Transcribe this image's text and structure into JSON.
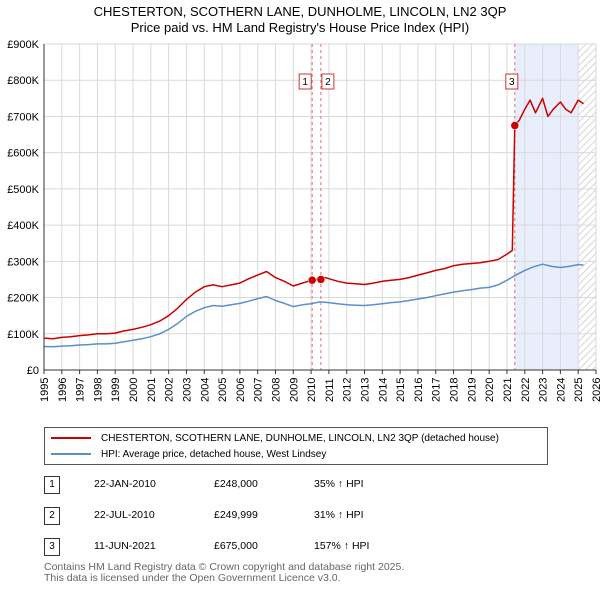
{
  "header": {
    "title": "CHESTERTON, SCOTHERN LANE, DUNHOLME, LINCOLN, LN2 3QP",
    "subtitle": "Price paid vs. HM Land Registry's House Price Index (HPI)"
  },
  "colors": {
    "price_line": "#cc0000",
    "hpi_line": "#5b8fcc",
    "shade": "#e8eefc",
    "grid": "#d9d9d9"
  },
  "chart_data": {
    "type": "line",
    "title": "CHESTERTON, SCOTHERN LANE, DUNHOLME, LINCOLN, LN2 3QP",
    "subtitle": "Price paid vs. HM Land Registry's House Price Index (HPI)",
    "xlim": [
      1995,
      2026
    ],
    "ylim": [
      0,
      900000
    ],
    "x_ticks": [
      "1995",
      "1996",
      "1997",
      "1998",
      "1999",
      "2000",
      "2001",
      "2002",
      "2003",
      "2004",
      "2005",
      "2006",
      "2007",
      "2008",
      "2009",
      "2010",
      "2011",
      "2012",
      "2013",
      "2014",
      "2015",
      "2016",
      "2017",
      "2018",
      "2019",
      "2020",
      "2021",
      "2022",
      "2023",
      "2024",
      "2025",
      "2026"
    ],
    "y_ticks": [
      {
        "value": 0,
        "label": "£0"
      },
      {
        "value": 100000,
        "label": "£100K"
      },
      {
        "value": 200000,
        "label": "£200K"
      },
      {
        "value": 300000,
        "label": "£300K"
      },
      {
        "value": 400000,
        "label": "£400K"
      },
      {
        "value": 500000,
        "label": "£500K"
      },
      {
        "value": 600000,
        "label": "£600K"
      },
      {
        "value": 700000,
        "label": "£700K"
      },
      {
        "value": 800000,
        "label": "£800K"
      },
      {
        "value": 900000,
        "label": "£900K"
      }
    ],
    "grid": true,
    "series": [
      {
        "name": "CHESTERTON, SCOTHERN LANE, DUNHOLME, LINCOLN, LN2 3QP (detached house)",
        "color": "#cc0000",
        "x": [
          1995.0,
          1995.5,
          1996.0,
          1996.5,
          1997.0,
          1997.5,
          1998.0,
          1998.5,
          1999.0,
          1999.5,
          2000.0,
          2000.5,
          2001.0,
          2001.5,
          2002.0,
          2002.5,
          2003.0,
          2003.5,
          2004.0,
          2004.5,
          2005.0,
          2005.5,
          2006.0,
          2006.5,
          2007.0,
          2007.5,
          2008.0,
          2008.5,
          2009.0,
          2009.5,
          2010.05,
          2010.3,
          2010.55,
          2010.8,
          2011.0,
          2011.5,
          2012.0,
          2012.5,
          2013.0,
          2013.5,
          2014.0,
          2014.5,
          2015.0,
          2015.5,
          2016.0,
          2016.5,
          2017.0,
          2017.5,
          2018.0,
          2018.5,
          2019.0,
          2019.5,
          2020.0,
          2020.5,
          2021.0,
          2021.3,
          2021.44,
          2021.7,
          2022.0,
          2022.3,
          2022.6,
          2023.0,
          2023.3,
          2023.6,
          2024.0,
          2024.3,
          2024.6,
          2025.0,
          2025.3
        ],
        "values": [
          88000,
          86000,
          90000,
          92000,
          95000,
          97000,
          100000,
          100000,
          102000,
          108000,
          112000,
          118000,
          125000,
          135000,
          150000,
          170000,
          195000,
          215000,
          230000,
          235000,
          230000,
          235000,
          240000,
          252000,
          262000,
          272000,
          255000,
          245000,
          232000,
          240000,
          248000,
          250000,
          249999,
          255000,
          252000,
          245000,
          240000,
          238000,
          236000,
          240000,
          245000,
          248000,
          250000,
          255000,
          262000,
          268000,
          275000,
          280000,
          288000,
          292000,
          294000,
          296000,
          300000,
          305000,
          320000,
          330000,
          675000,
          690000,
          720000,
          745000,
          710000,
          750000,
          700000,
          720000,
          740000,
          720000,
          710000,
          745000,
          735000
        ]
      },
      {
        "name": "HPI: Average price, detached house, West Lindsey",
        "color": "#5b8fcc",
        "x": [
          1995.0,
          1995.5,
          1996.0,
          1996.5,
          1997.0,
          1997.5,
          1998.0,
          1998.5,
          1999.0,
          1999.5,
          2000.0,
          2000.5,
          2001.0,
          2001.5,
          2002.0,
          2002.5,
          2003.0,
          2003.5,
          2004.0,
          2004.5,
          2005.0,
          2005.5,
          2006.0,
          2006.5,
          2007.0,
          2007.5,
          2008.0,
          2008.5,
          2009.0,
          2009.5,
          2010.0,
          2010.5,
          2011.0,
          2011.5,
          2012.0,
          2012.5,
          2013.0,
          2013.5,
          2014.0,
          2014.5,
          2015.0,
          2015.5,
          2016.0,
          2016.5,
          2017.0,
          2017.5,
          2018.0,
          2018.5,
          2019.0,
          2019.5,
          2020.0,
          2020.5,
          2021.0,
          2021.5,
          2022.0,
          2022.5,
          2023.0,
          2023.5,
          2024.0,
          2024.5,
          2025.0,
          2025.3
        ],
        "values": [
          65000,
          64000,
          66000,
          67000,
          69000,
          70000,
          72000,
          72000,
          74000,
          78000,
          82000,
          86000,
          92000,
          100000,
          112000,
          128000,
          148000,
          162000,
          172000,
          178000,
          176000,
          180000,
          184000,
          190000,
          197000,
          203000,
          192000,
          184000,
          175000,
          180000,
          183000,
          188000,
          186000,
          183000,
          180000,
          179000,
          178000,
          180000,
          183000,
          186000,
          188000,
          192000,
          196000,
          200000,
          205000,
          210000,
          215000,
          219000,
          222000,
          226000,
          228000,
          235000,
          248000,
          262000,
          275000,
          285000,
          292000,
          286000,
          283000,
          286000,
          291000,
          290000
        ]
      }
    ],
    "sales": [
      {
        "label": "1",
        "x": 2010.06,
        "value": 248000,
        "date": "22-JAN-2010"
      },
      {
        "label": "2",
        "x": 2010.55,
        "value": 249999,
        "date": "22-JUL-2010"
      },
      {
        "label": "3",
        "x": 2021.44,
        "value": 675000,
        "date": "11-JUN-2021"
      }
    ],
    "shaded_region": [
      2021.44,
      2025.0
    ],
    "hatched_region": [
      2025.0,
      2026.0
    ]
  },
  "legend": {
    "price": "CHESTERTON, SCOTHERN LANE, DUNHOLME, LINCOLN, LN2 3QP (detached house)",
    "hpi": "HPI: Average price, detached house, West Lindsey"
  },
  "transactions": [
    {
      "num": "1",
      "date": "22-JAN-2010",
      "price": "£248,000",
      "hpi": "35% ↑ HPI"
    },
    {
      "num": "2",
      "date": "22-JUL-2010",
      "price": "£249,999",
      "hpi": "31% ↑ HPI"
    },
    {
      "num": "3",
      "date": "11-JUN-2021",
      "price": "£675,000",
      "hpi": "157% ↑ HPI"
    }
  ],
  "footer": {
    "line1": "Contains HM Land Registry data © Crown copyright and database right 2025.",
    "line2": "This data is licensed under the Open Government Licence v3.0."
  }
}
